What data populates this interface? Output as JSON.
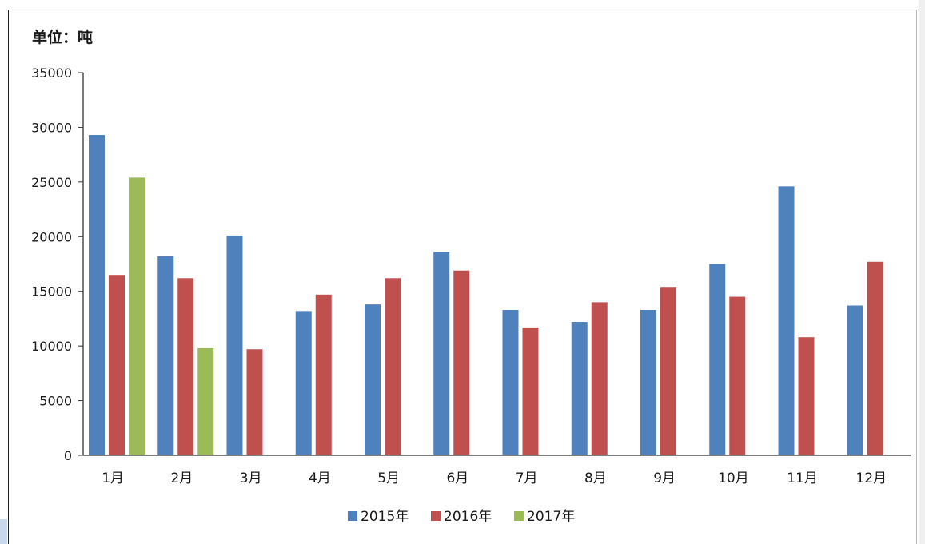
{
  "chart_data": {
    "type": "bar",
    "unit_label": "单位：吨",
    "categories": [
      "1月",
      "2月",
      "3月",
      "4月",
      "5月",
      "6月",
      "7月",
      "8月",
      "9月",
      "10月",
      "11月",
      "12月"
    ],
    "ylim": [
      0,
      35000
    ],
    "yticks": [
      "0",
      "5000",
      "10000",
      "15000",
      "20000",
      "25000",
      "30000",
      "35000"
    ],
    "grid": false,
    "legend_position": "bottom",
    "series": [
      {
        "name": "2015年",
        "color": "#4f81bd",
        "values": [
          29300,
          18200,
          20100,
          13200,
          13800,
          18600,
          13300,
          12200,
          13300,
          17500,
          24600,
          13700
        ]
      },
      {
        "name": "2016年",
        "color": "#c0504d",
        "values": [
          16500,
          16200,
          9700,
          14700,
          16200,
          16900,
          11700,
          14000,
          15400,
          14500,
          10800,
          17700
        ]
      },
      {
        "name": "2017年",
        "color": "#9bbb59",
        "values": [
          25400,
          9800,
          null,
          null,
          null,
          null,
          null,
          null,
          null,
          null,
          null,
          null
        ]
      }
    ]
  }
}
